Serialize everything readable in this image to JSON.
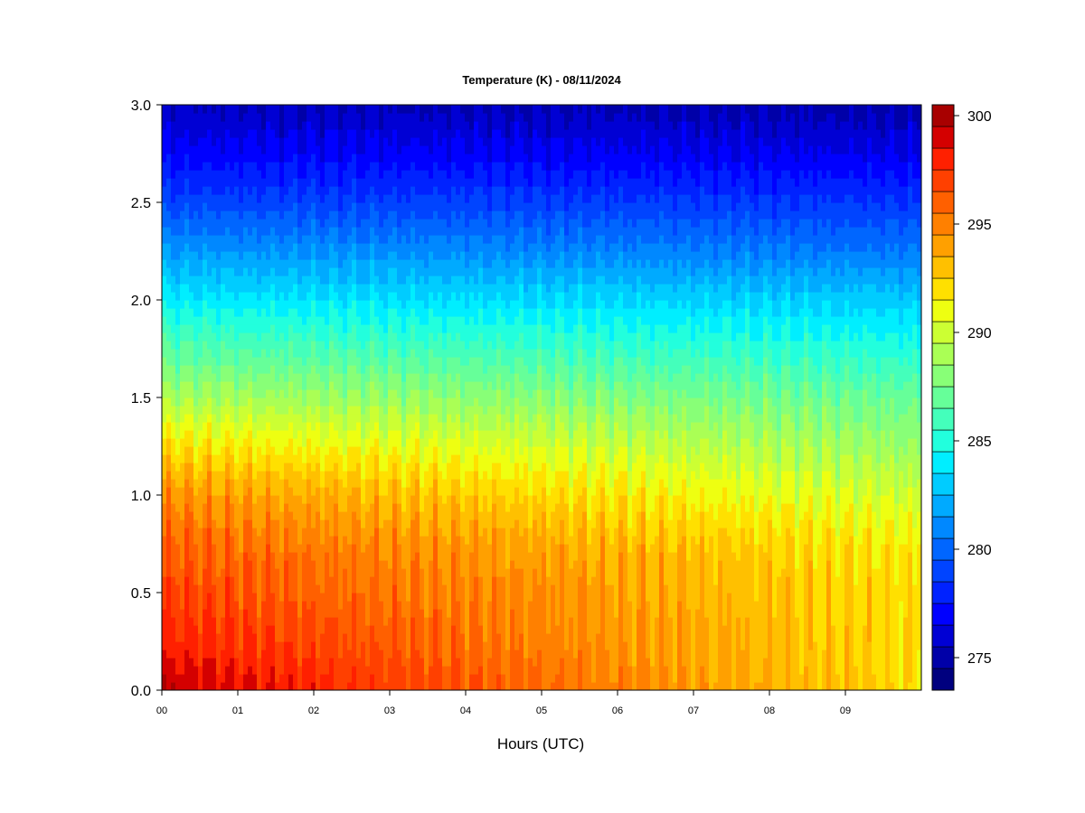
{
  "chart_data": {
    "type": "heatmap",
    "title": "Temperature (K) - 08/11/2024",
    "xlabel": "Hours (UTC)",
    "ylabel": "",
    "x_ticks": [
      "00",
      "01",
      "02",
      "03",
      "04",
      "05",
      "06",
      "07",
      "08",
      "09"
    ],
    "xlim": [
      0,
      10
    ],
    "y_ticks": [
      "0.0",
      "0.5",
      "1.0",
      "1.5",
      "2.0",
      "2.5",
      "3.0"
    ],
    "ylim": [
      0,
      3
    ],
    "colorbar": {
      "ticks": [
        "275",
        "280",
        "285",
        "290",
        "295",
        "300"
      ],
      "range": [
        274,
        301
      ],
      "levels": [
        274,
        275,
        276,
        277,
        278,
        279,
        280,
        281,
        282,
        283,
        284,
        285,
        286,
        287,
        288,
        289,
        290,
        291,
        292,
        293,
        294,
        295,
        296,
        297,
        298,
        299,
        300,
        301
      ],
      "colors": [
        "#00007F",
        "#0000A8",
        "#0000D4",
        "#0000FF",
        "#0022FF",
        "#0044FF",
        "#0066FF",
        "#0088FF",
        "#00AAFF",
        "#00CCFF",
        "#00EEFF",
        "#22FFDD",
        "#44FFBB",
        "#66FF99",
        "#88FF77",
        "#AAFF55",
        "#CCFF33",
        "#EEFF11",
        "#FFE000",
        "#FFC000",
        "#FFA000",
        "#FF8000",
        "#FF6000",
        "#FF4000",
        "#FF2000",
        "#D40000",
        "#A80000"
      ]
    },
    "temperature_profile": {
      "height_km": [
        0.0,
        0.25,
        0.5,
        0.75,
        1.0,
        1.25,
        1.5,
        1.75,
        2.0,
        2.25,
        2.5,
        2.75,
        3.0
      ],
      "at_hour_00": [
        300,
        298.5,
        297.5,
        296.5,
        295,
        292.5,
        289.5,
        287,
        284.5,
        282,
        279.5,
        277.5,
        276
      ],
      "at_hour_10": [
        292.5,
        292.5,
        292.5,
        292,
        290.5,
        289,
        287.5,
        285.5,
        283.5,
        281,
        279,
        277,
        275.5
      ]
    }
  }
}
